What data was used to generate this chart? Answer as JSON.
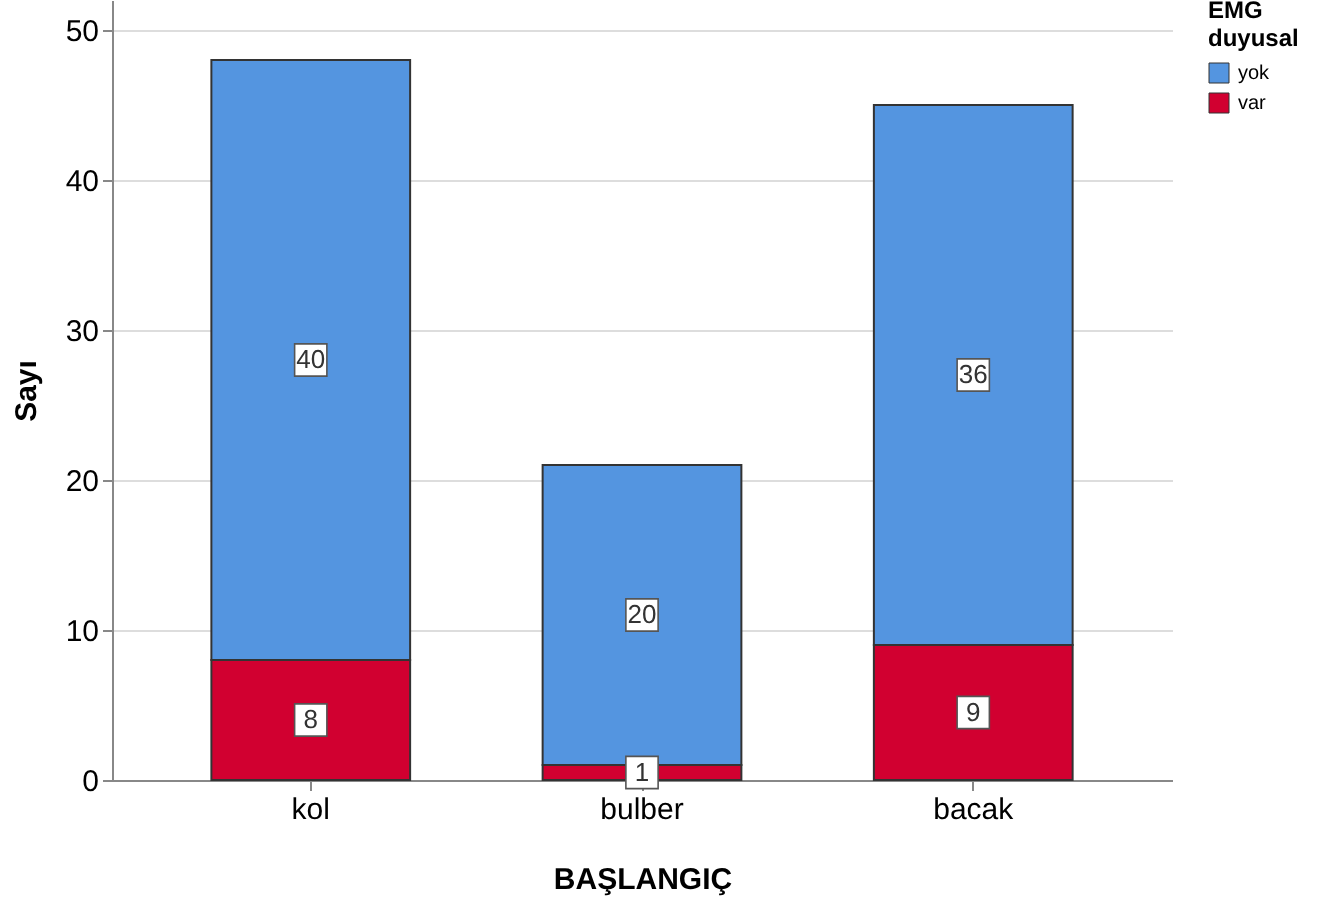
{
  "chart_data": {
    "type": "bar",
    "stacked": true,
    "xlabel": "BAŞLANGIÇ",
    "ylabel": "Sayı",
    "legend_title": "EMG duyusal",
    "legend": "top right",
    "grid": "y",
    "data_labels": true,
    "categories": [
      "kol",
      "bulber",
      "bacak"
    ],
    "series": [
      {
        "name": "var",
        "color": "#d10030",
        "values": [
          8,
          1,
          9
        ]
      },
      {
        "name": "yok",
        "color": "#5495e0",
        "values": [
          40,
          20,
          36
        ]
      }
    ],
    "ylim": [
      0,
      52
    ],
    "yticks": [
      0,
      10,
      20,
      30,
      40,
      50
    ]
  }
}
